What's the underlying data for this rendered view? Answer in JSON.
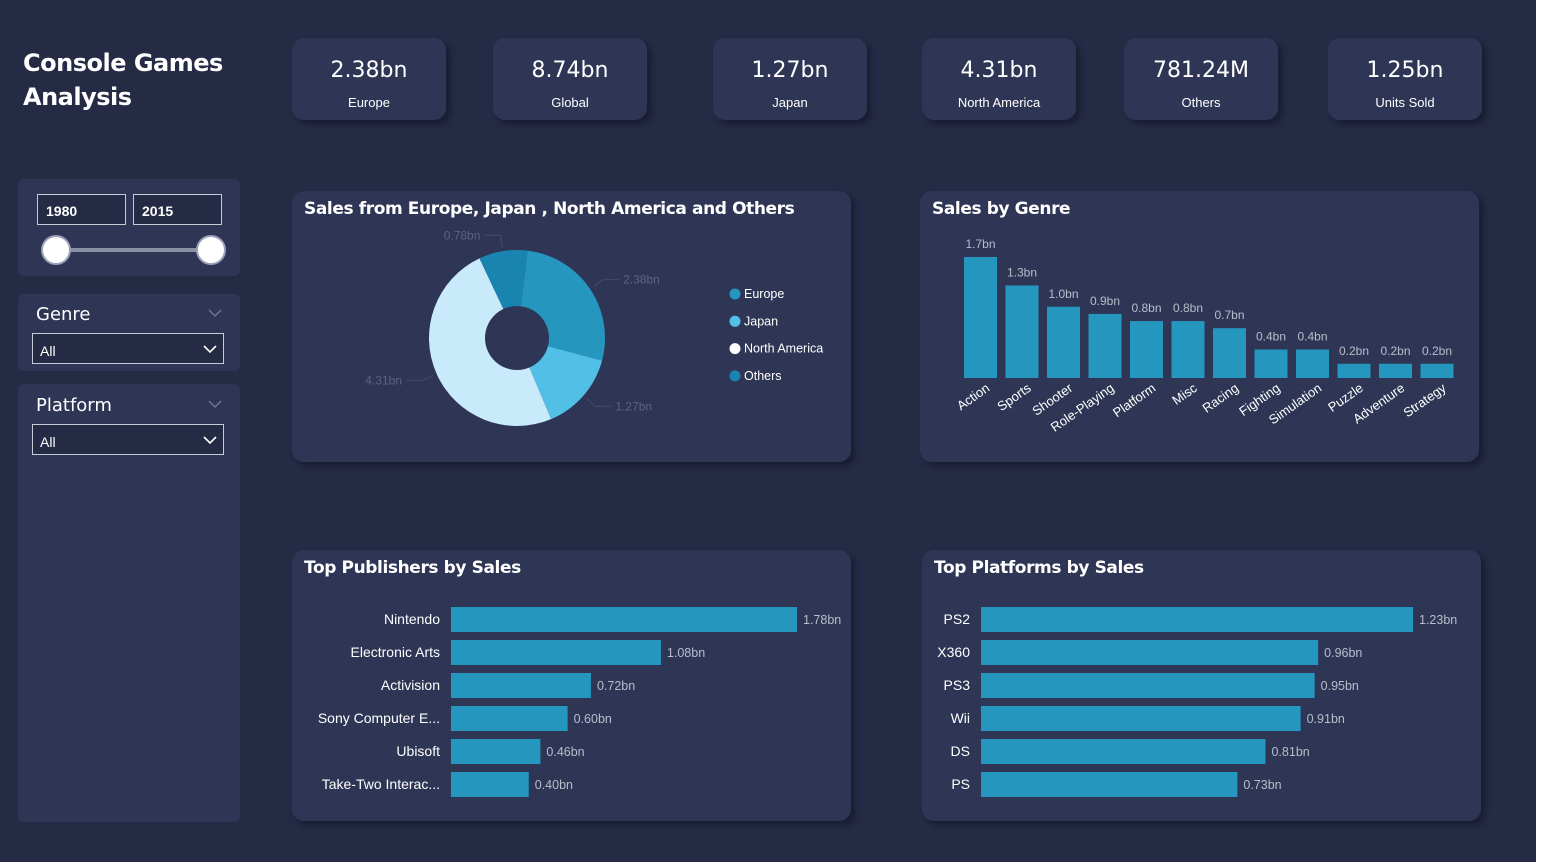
{
  "title": "Console Games Analysis",
  "kpis": [
    {
      "value": "2.38bn",
      "label": "Europe"
    },
    {
      "value": "8.74bn",
      "label": "Global"
    },
    {
      "value": "1.27bn",
      "label": "Japan"
    },
    {
      "value": "4.31bn",
      "label": "North America"
    },
    {
      "value": "781.24M",
      "label": "Others"
    },
    {
      "value": "1.25bn",
      "label": "Units Sold"
    }
  ],
  "filters": {
    "year_from": "1980",
    "year_to": "2015",
    "genre": {
      "label": "Genre",
      "value": "All"
    },
    "platform": {
      "label": "Platform",
      "value": "All"
    }
  },
  "colors": {
    "background": "#252b45",
    "panel": "#2f3655",
    "bar": "#2596be",
    "europe": "#2596be",
    "japan": "#52bfe6",
    "north_america": "#c8eafb",
    "others": "#1a84b0",
    "data_label": "#b8bccb",
    "faint_label": "#5b637e"
  },
  "chart_data": [
    {
      "type": "pie",
      "title": "Sales from Europe, Japan , North America and Others",
      "categories": [
        "Europe",
        "Japan",
        "North America",
        "Others"
      ],
      "values": [
        2.38,
        1.27,
        4.31,
        0.78
      ],
      "value_labels": [
        "2.38bn",
        "1.27bn",
        "4.31bn",
        "0.78bn"
      ],
      "units": "bn",
      "donut": true,
      "legend": "right"
    },
    {
      "type": "bar",
      "title": "Sales by Genre",
      "categories": [
        "Action",
        "Sports",
        "Shooter",
        "Role-Playing",
        "Platform",
        "Misc",
        "Racing",
        "Fighting",
        "Simulation",
        "Puzzle",
        "Adventure",
        "Strategy"
      ],
      "values": [
        1.7,
        1.3,
        1.0,
        0.9,
        0.8,
        0.8,
        0.7,
        0.4,
        0.4,
        0.2,
        0.2,
        0.2
      ],
      "value_labels": [
        "1.7bn",
        "1.3bn",
        "1.0bn",
        "0.9bn",
        "0.8bn",
        "0.8bn",
        "0.7bn",
        "0.4bn",
        "0.4bn",
        "0.2bn",
        "0.2bn",
        "0.2bn"
      ],
      "ylim": [
        0,
        1.7
      ],
      "grid": false
    },
    {
      "type": "bar",
      "orientation": "horizontal",
      "title": "Top Publishers by Sales",
      "categories": [
        "Nintendo",
        "Electronic Arts",
        "Activision",
        "Sony Computer E...",
        "Ubisoft",
        "Take-Two Interac..."
      ],
      "values": [
        1.78,
        1.08,
        0.72,
        0.6,
        0.46,
        0.4
      ],
      "value_labels": [
        "1.78bn",
        "1.08bn",
        "0.72bn",
        "0.60bn",
        "0.46bn",
        "0.40bn"
      ],
      "xlim": [
        0,
        1.78
      ]
    },
    {
      "type": "bar",
      "orientation": "horizontal",
      "title": "Top Platforms by Sales",
      "categories": [
        "PS2",
        "X360",
        "PS3",
        "Wii",
        "DS",
        "PS"
      ],
      "values": [
        1.23,
        0.96,
        0.95,
        0.91,
        0.81,
        0.73
      ],
      "value_labels": [
        "1.23bn",
        "0.96bn",
        "0.95bn",
        "0.91bn",
        "0.81bn",
        "0.73bn"
      ],
      "xlim": [
        0,
        1.23
      ]
    }
  ]
}
